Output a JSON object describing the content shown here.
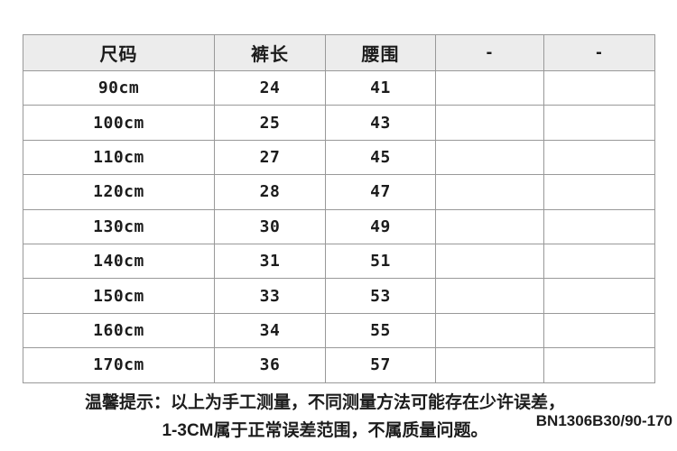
{
  "chart_data": {
    "type": "table",
    "columns": [
      "尺码",
      "裤长",
      "腰围",
      "-",
      "-"
    ],
    "rows": [
      [
        "90cm",
        "24",
        "41",
        "",
        ""
      ],
      [
        "100cm",
        "25",
        "43",
        "",
        ""
      ],
      [
        "110cm",
        "27",
        "45",
        "",
        ""
      ],
      [
        "120cm",
        "28",
        "47",
        "",
        ""
      ],
      [
        "130cm",
        "30",
        "49",
        "",
        ""
      ],
      [
        "140cm",
        "31",
        "51",
        "",
        ""
      ],
      [
        "150cm",
        "33",
        "53",
        "",
        ""
      ],
      [
        "160cm",
        "34",
        "55",
        "",
        ""
      ],
      [
        "170cm",
        "36",
        "57",
        "",
        ""
      ]
    ],
    "title": "",
    "layout_hints": {
      "header_background": true,
      "grid": "full",
      "cell_alignment": "center"
    }
  },
  "footer": {
    "notice_line1": "温馨提示：以上为手工测量，不同测量方法可能存在少许误差，",
    "notice_line2": "1-3CM属于正常误差范围，不属质量问题。",
    "product_code": "BN1306B30/90-170"
  },
  "colors": {
    "background": "#ffffff",
    "header_bg": "#ececec",
    "border": "#999999",
    "text": "#1c1c1c"
  }
}
